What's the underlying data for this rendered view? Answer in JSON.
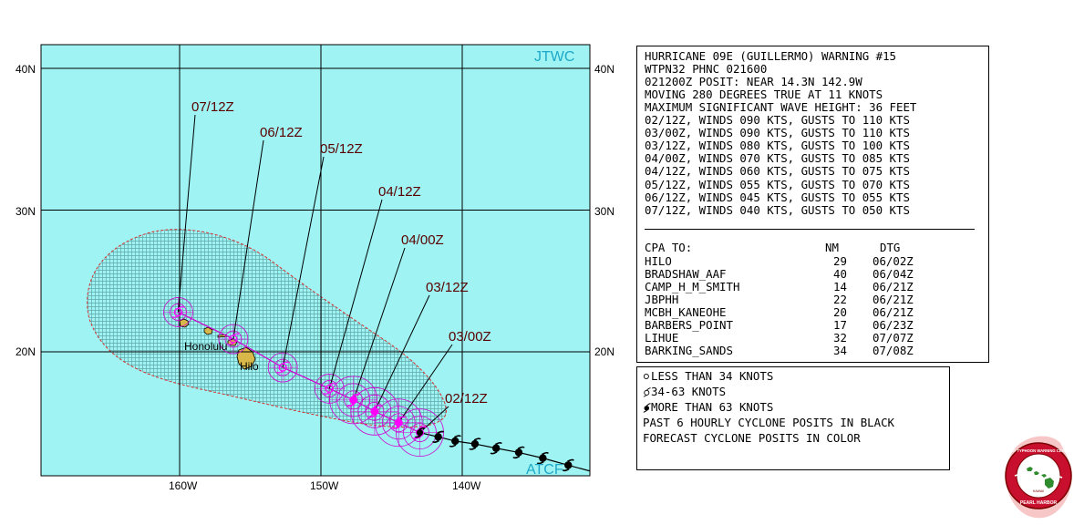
{
  "map": {
    "corner_label_top": "JTWC",
    "corner_label_bottom": "ATCF",
    "lon_labels": [
      "160W",
      "150W",
      "140W"
    ],
    "lat_labels": [
      "40N",
      "30N",
      "20N"
    ],
    "place_labels": [
      "Honolulu",
      "Hilo"
    ],
    "colors": {
      "ocean": "#9ff3f3",
      "land": "#d8b848",
      "grid": "#000000",
      "wind_area": "#dc2f2f",
      "track_forecast": "#d000d0",
      "track_past": "#000000",
      "forecast_marker": "#ff00ff",
      "label_text": "#5a0000",
      "corner_text": "#1ea8c8"
    },
    "forecast_points": [
      {
        "label": "02/12Z",
        "lon": -143.0,
        "lat": 14.3,
        "intensity": "more than 63 knots"
      },
      {
        "label": "03/00Z",
        "lon": -144.5,
        "lat": 15.0,
        "intensity": "more than 63 knots"
      },
      {
        "label": "03/12Z",
        "lon": -146.2,
        "lat": 15.8,
        "intensity": "more than 63 knots"
      },
      {
        "label": "04/00Z",
        "lon": -147.7,
        "lat": 16.6,
        "intensity": "more than 63 knots"
      },
      {
        "label": "04/12Z",
        "lon": -149.4,
        "lat": 17.4,
        "intensity": "34-63 knots"
      },
      {
        "label": "05/12Z",
        "lon": -152.7,
        "lat": 18.9,
        "intensity": "34-63 knots"
      },
      {
        "label": "06/12Z",
        "lon": -156.2,
        "lat": 20.9,
        "intensity": "34-63 knots"
      },
      {
        "label": "07/12Z",
        "lon": -160.1,
        "lat": 22.8,
        "intensity": "34-63 knots"
      }
    ],
    "past_positions": [
      {
        "lon": -141.7,
        "lat": 14.0
      },
      {
        "lon": -140.5,
        "lat": 13.7
      },
      {
        "lon": -139.1,
        "lat": 13.5
      },
      {
        "lon": -137.6,
        "lat": 13.2
      },
      {
        "lon": -136.0,
        "lat": 12.9
      },
      {
        "lon": -134.3,
        "lat": 12.5
      },
      {
        "lon": -132.5,
        "lat": 12.0
      }
    ]
  },
  "warning": {
    "lines": [
      "HURRICANE 09E (GUILLERMO) WARNING #15",
      "WTPN32 PHNC 021600",
      "021200Z POSIT: NEAR 14.3N 142.9W",
      "MOVING 280 DEGREES TRUE AT 11 KNOTS",
      "MAXIMUM SIGNIFICANT WAVE HEIGHT: 36 FEET",
      "02/12Z, WINDS 090 KTS, GUSTS TO 110 KTS",
      "03/00Z, WINDS 090 KTS, GUSTS TO 110 KTS",
      "03/12Z, WINDS 080 KTS, GUSTS TO 100 KTS",
      "04/00Z, WINDS 070 KTS, GUSTS TO 085 KTS",
      "04/12Z, WINDS 060 KTS, GUSTS TO 075 KTS",
      "05/12Z, WINDS 055 KTS, GUSTS TO 070 KTS",
      "06/12Z, WINDS 045 KTS, GUSTS TO 055 KTS",
      "07/12Z, WINDS 040 KTS, GUSTS TO 050 KTS"
    ],
    "cpa": {
      "title": "CPA TO:",
      "col_nm": "NM",
      "col_dtg": "DTG",
      "rows": [
        {
          "name": "HILO",
          "nm": "29",
          "dtg": "06/02Z"
        },
        {
          "name": "BRADSHAW_AAF",
          "nm": "40",
          "dtg": "06/04Z"
        },
        {
          "name": "CAMP_H_M_SMITH",
          "nm": "14",
          "dtg": "06/21Z"
        },
        {
          "name": "JBPHH",
          "nm": "22",
          "dtg": "06/21Z"
        },
        {
          "name": "MCBH_KANEOHE",
          "nm": "20",
          "dtg": "06/21Z"
        },
        {
          "name": "BARBERS_POINT",
          "nm": "17",
          "dtg": "06/23Z"
        },
        {
          "name": "LIHUE",
          "nm": "32",
          "dtg": "07/07Z"
        },
        {
          "name": "BARKING_SANDS",
          "nm": "34",
          "dtg": "07/08Z"
        }
      ]
    }
  },
  "legend": {
    "items": [
      {
        "icon": "hollow-circle-icon",
        "text": "LESS THAN 34 KNOTS"
      },
      {
        "icon": "tropical-storm-icon",
        "text": "34-63 KNOTS"
      },
      {
        "icon": "hurricane-icon",
        "text": "MORE THAN 63 KNOTS"
      },
      {
        "icon": "",
        "text": "PAST 6 HOURLY CYCLONE POSITS IN BLACK"
      },
      {
        "icon": "",
        "text": "FORECAST CYCLONE POSITS IN COLOR"
      }
    ]
  },
  "seal": {
    "text_top": "JOINT TYPHOON WARNING CENTER",
    "text_bottom": "PEARL HARBOR",
    "text_small": "HAWAII"
  }
}
